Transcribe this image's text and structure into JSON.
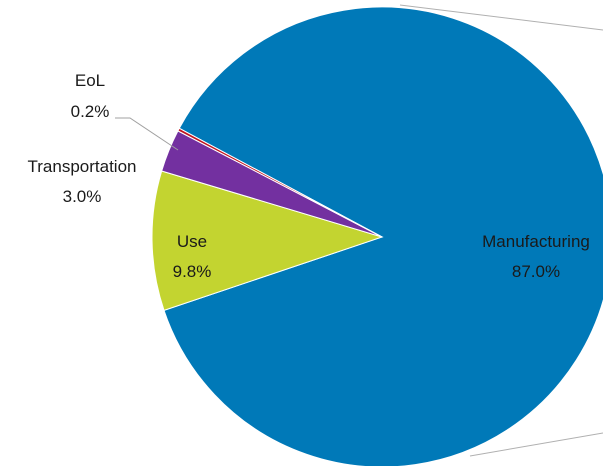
{
  "chart_data": {
    "type": "pie",
    "slices": [
      {
        "label": "Manufacturing",
        "value": 87.0,
        "display": "87.0%",
        "color": "#0079b8"
      },
      {
        "label": "Use",
        "value": 9.8,
        "display": "9.8%",
        "color": "#c3d430"
      },
      {
        "label": "Transportation",
        "value": 3.0,
        "display": "3.0%",
        "color": "#7330a0"
      },
      {
        "label": "EoL",
        "value": 0.2,
        "display": "0.2%",
        "color": "#c0141e"
      }
    ]
  }
}
